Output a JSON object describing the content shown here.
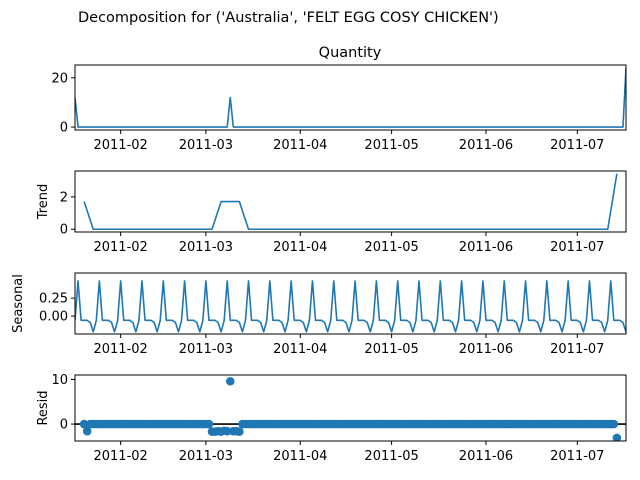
{
  "suptitle": "Decomposition for ('Australia', 'FELT EGG COSY CHICKEN')",
  "line_color": "#1f77b4",
  "x_tick_labels": [
    "2011-02",
    "2011-03",
    "2011-04",
    "2011-05",
    "2011-06",
    "2011-07"
  ],
  "chart_data": [
    {
      "type": "line",
      "title": "Quantity",
      "ylabel": "",
      "xlim": [
        "2011-01-17",
        "2011-07-17"
      ],
      "ylim": [
        -1.2,
        25.2
      ],
      "yticks": [
        0,
        20
      ],
      "points": [
        [
          "2011-01-17",
          12
        ],
        [
          "2011-01-18",
          0
        ],
        [
          "2011-03-08",
          0
        ],
        [
          "2011-03-09",
          12
        ],
        [
          "2011-03-10",
          0
        ],
        [
          "2011-07-16",
          0
        ],
        [
          "2011-07-17",
          24
        ]
      ]
    },
    {
      "type": "line",
      "title": "",
      "ylabel": "Trend",
      "xlim": [
        "2011-01-17",
        "2011-07-17"
      ],
      "ylim": [
        -0.17,
        3.6
      ],
      "yticks": [
        0,
        2
      ],
      "points": [
        [
          "2011-01-20",
          1.71
        ],
        [
          "2011-01-23",
          0
        ],
        [
          "2011-03-03",
          0
        ],
        [
          "2011-03-06",
          1.71
        ],
        [
          "2011-03-12",
          1.71
        ],
        [
          "2011-03-15",
          0
        ],
        [
          "2011-07-11",
          0
        ],
        [
          "2011-07-14",
          3.43
        ]
      ]
    },
    {
      "type": "line",
      "title": "",
      "ylabel": "Seasonal",
      "xlim": [
        "2011-01-17",
        "2011-07-17"
      ],
      "ylim": [
        -0.25,
        0.6
      ],
      "yticks": [
        0.25,
        0.0
      ],
      "ytick_labels": [
        "0.25",
        "0.00"
      ],
      "pattern": [
        0.49,
        -0.06,
        -0.06,
        -0.06,
        -0.09,
        -0.22,
        -0.06
      ],
      "pattern_start": "2011-01-18"
    },
    {
      "type": "scatter",
      "title": "",
      "ylabel": "Resid",
      "xlim": [
        "2011-01-17",
        "2011-07-17"
      ],
      "ylim": [
        -3.8,
        11.0
      ],
      "yticks": [
        0,
        10
      ],
      "x_start": "2011-01-20",
      "x_end": "2011-07-14",
      "default_value": 0.0,
      "special_points": [
        [
          "2011-01-21",
          -1.6
        ],
        [
          "2011-03-03",
          -1.7
        ],
        [
          "2011-03-04",
          -1.7
        ],
        [
          "2011-03-05",
          -1.6
        ],
        [
          "2011-03-06",
          -1.7
        ],
        [
          "2011-03-07",
          -1.5
        ],
        [
          "2011-03-08",
          -1.6
        ],
        [
          "2011-03-09",
          9.6
        ],
        [
          "2011-03-10",
          -1.6
        ],
        [
          "2011-03-11",
          -1.6
        ],
        [
          "2011-03-12",
          -1.7
        ],
        [
          "2011-07-14",
          -3.1
        ]
      ]
    }
  ]
}
